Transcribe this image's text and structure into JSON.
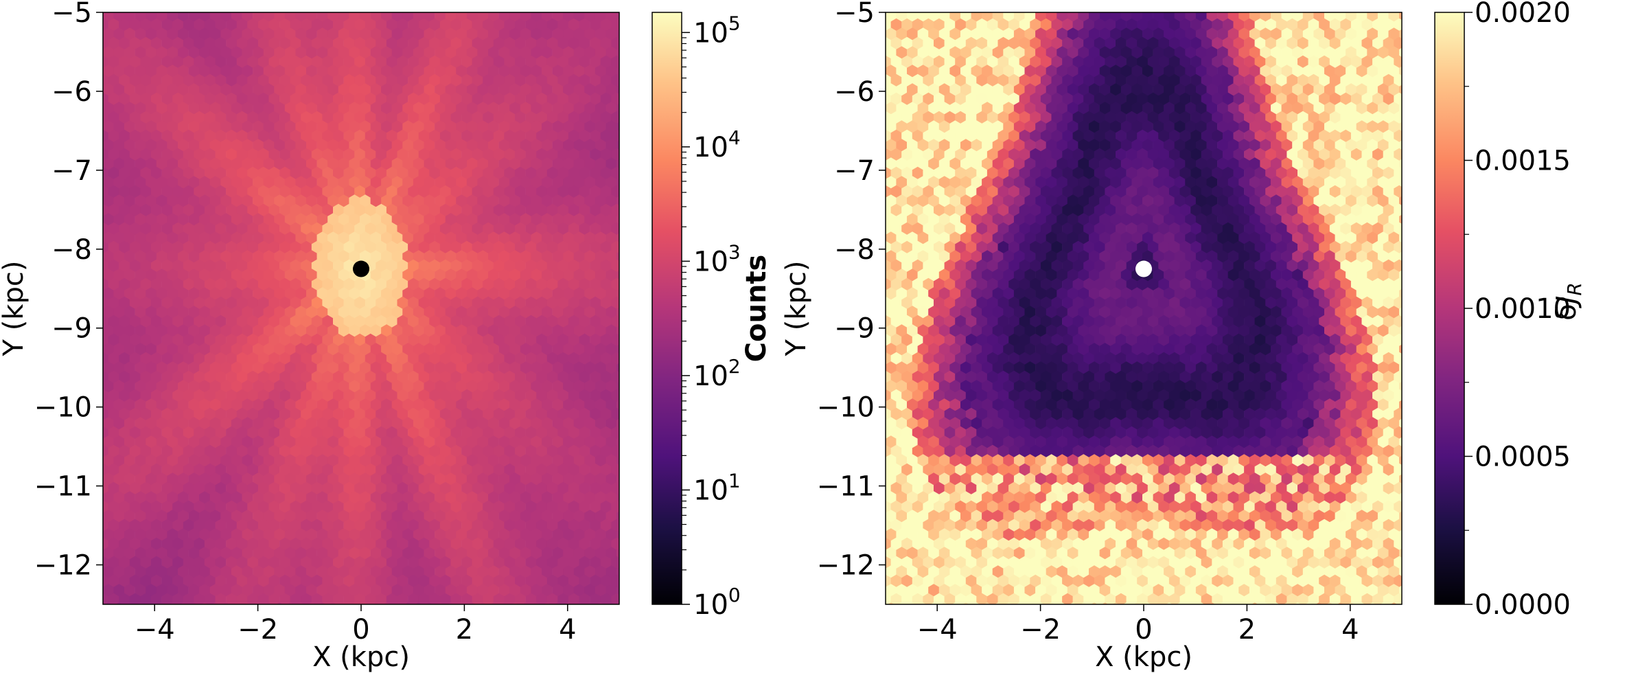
{
  "chart_data": [
    {
      "type": "heatmap",
      "panel": "left",
      "title": "",
      "xlabel": "X (kpc)",
      "ylabel": "Y (kpc)",
      "xlim": [
        -5,
        5
      ],
      "ylim": [
        -12.5,
        -5
      ],
      "xticks": [
        -4,
        -2,
        0,
        2,
        4
      ],
      "yticks": [
        -12,
        -11,
        -10,
        -9,
        -8,
        -7,
        -6,
        -5
      ],
      "marker": {
        "x": 0,
        "y": -8.25,
        "color": "#000000"
      },
      "colormap": "magma",
      "colorbar": {
        "label": "Counts",
        "scale": "log",
        "range": [
          1,
          150000
        ],
        "ticks": [
          {
            "base": "10",
            "exp": "0",
            "value": 1
          },
          {
            "base": "10",
            "exp": "1",
            "value": 10
          },
          {
            "base": "10",
            "exp": "2",
            "value": 100
          },
          {
            "base": "10",
            "exp": "3",
            "value": 1000
          },
          {
            "base": "10",
            "exp": "4",
            "value": 10000
          },
          {
            "base": "10",
            "exp": "5",
            "value": 100000
          }
        ]
      }
    },
    {
      "type": "heatmap",
      "panel": "right",
      "title": "",
      "xlabel": "X (kpc)",
      "ylabel": "Y (kpc)",
      "xlim": [
        -5,
        5
      ],
      "ylim": [
        -12.5,
        -5
      ],
      "xticks": [
        -4,
        -2,
        0,
        2,
        4
      ],
      "yticks": [
        -12,
        -11,
        -10,
        -9,
        -8,
        -7,
        -6,
        -5
      ],
      "marker": {
        "x": 0,
        "y": -8.25,
        "color": "#ffffff"
      },
      "colormap": "magma",
      "colorbar": {
        "label": "δJ_R",
        "scale": "linear",
        "range": [
          0,
          0.002
        ],
        "ticks": [
          "0.0000",
          "0.0005",
          "0.0010",
          "0.0015",
          "0.0020"
        ],
        "tick_values": [
          0,
          0.0005,
          0.001,
          0.0015,
          0.002
        ]
      }
    }
  ]
}
